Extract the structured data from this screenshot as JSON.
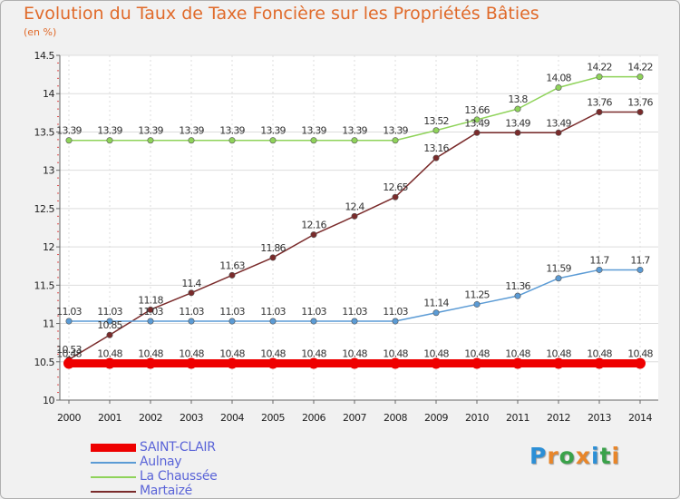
{
  "title": "Evolution du Taux de Taxe Foncière sur les Propriétés Bâties",
  "unit": "(en %)",
  "logo": {
    "letters": [
      "P",
      "r",
      "o",
      "x",
      "i",
      "t",
      "i"
    ],
    "colors": [
      "#2c8fd6",
      "#e8862a",
      "#3aa24a",
      "#e8862a",
      "#2c8fd6",
      "#3aa24a",
      "#e8862a"
    ]
  },
  "chart_data": {
    "type": "line",
    "title": "Evolution du Taux de Taxe Foncière sur les Propriétés Bâties",
    "ylabel": "(en %)",
    "x": [
      "2000",
      "2001",
      "2002",
      "2003",
      "2004",
      "2005",
      "2006",
      "2007",
      "2008",
      "2009",
      "2010",
      "2011",
      "2012",
      "2013",
      "2014"
    ],
    "ylim": [
      10,
      14.5
    ],
    "yticks": [
      "10",
      "10.5",
      "11",
      "11.5",
      "12",
      "12.5",
      "13",
      "13.5",
      "14",
      "14.5"
    ],
    "legend_position": "bottom-left",
    "series": [
      {
        "name": "SAINT-CLAIR",
        "color": "#ee0000",
        "values": [
          10.48,
          10.48,
          10.48,
          10.48,
          10.48,
          10.48,
          10.48,
          10.48,
          10.48,
          10.48,
          10.48,
          10.48,
          10.48,
          10.48,
          10.48
        ],
        "labels": [
          "10.48",
          "10.48",
          "10.48",
          "10.48",
          "10.48",
          "10.48",
          "10.48",
          "10.48",
          "10.48",
          "10.48",
          "10.48",
          "10.48",
          "10.48",
          "10.48",
          "10.48"
        ]
      },
      {
        "name": "Aulnay",
        "color": "#5b9bd5",
        "values": [
          11.03,
          11.03,
          11.03,
          11.03,
          11.03,
          11.03,
          11.03,
          11.03,
          11.03,
          11.14,
          11.25,
          11.36,
          11.59,
          11.7,
          11.7
        ],
        "labels": [
          "11.03",
          "11.03",
          "11.03",
          "11.03",
          "11.03",
          "11.03",
          "11.03",
          "11.03",
          "11.03",
          "11.14",
          "11.25",
          "11.36",
          "11.59",
          "11.7",
          "11.7"
        ]
      },
      {
        "name": "La Chaussée",
        "color": "#8fd35a",
        "values": [
          13.39,
          13.39,
          13.39,
          13.39,
          13.39,
          13.39,
          13.39,
          13.39,
          13.39,
          13.52,
          13.66,
          13.8,
          14.08,
          14.22,
          14.22
        ],
        "labels": [
          "13.39",
          "13.39",
          "13.39",
          "13.39",
          "13.39",
          "13.39",
          "13.39",
          "13.39",
          "13.39",
          "13.52",
          "13.66",
          "13.8",
          "14.08",
          "14.22",
          "14.22"
        ]
      },
      {
        "name": "Martaizé",
        "color": "#7a2b2b",
        "values": [
          10.53,
          10.85,
          11.18,
          11.4,
          11.63,
          11.86,
          12.16,
          12.4,
          12.65,
          13.16,
          13.49,
          13.49,
          13.49,
          13.76,
          13.76
        ],
        "labels": [
          "10.53",
          "10.85",
          "11.18",
          "11.4",
          "11.63",
          "11.86",
          "12.16",
          "12.4",
          "12.65",
          "13.16",
          "13.49",
          "13.49",
          "13.49",
          "13.76",
          "13.76"
        ]
      }
    ]
  }
}
